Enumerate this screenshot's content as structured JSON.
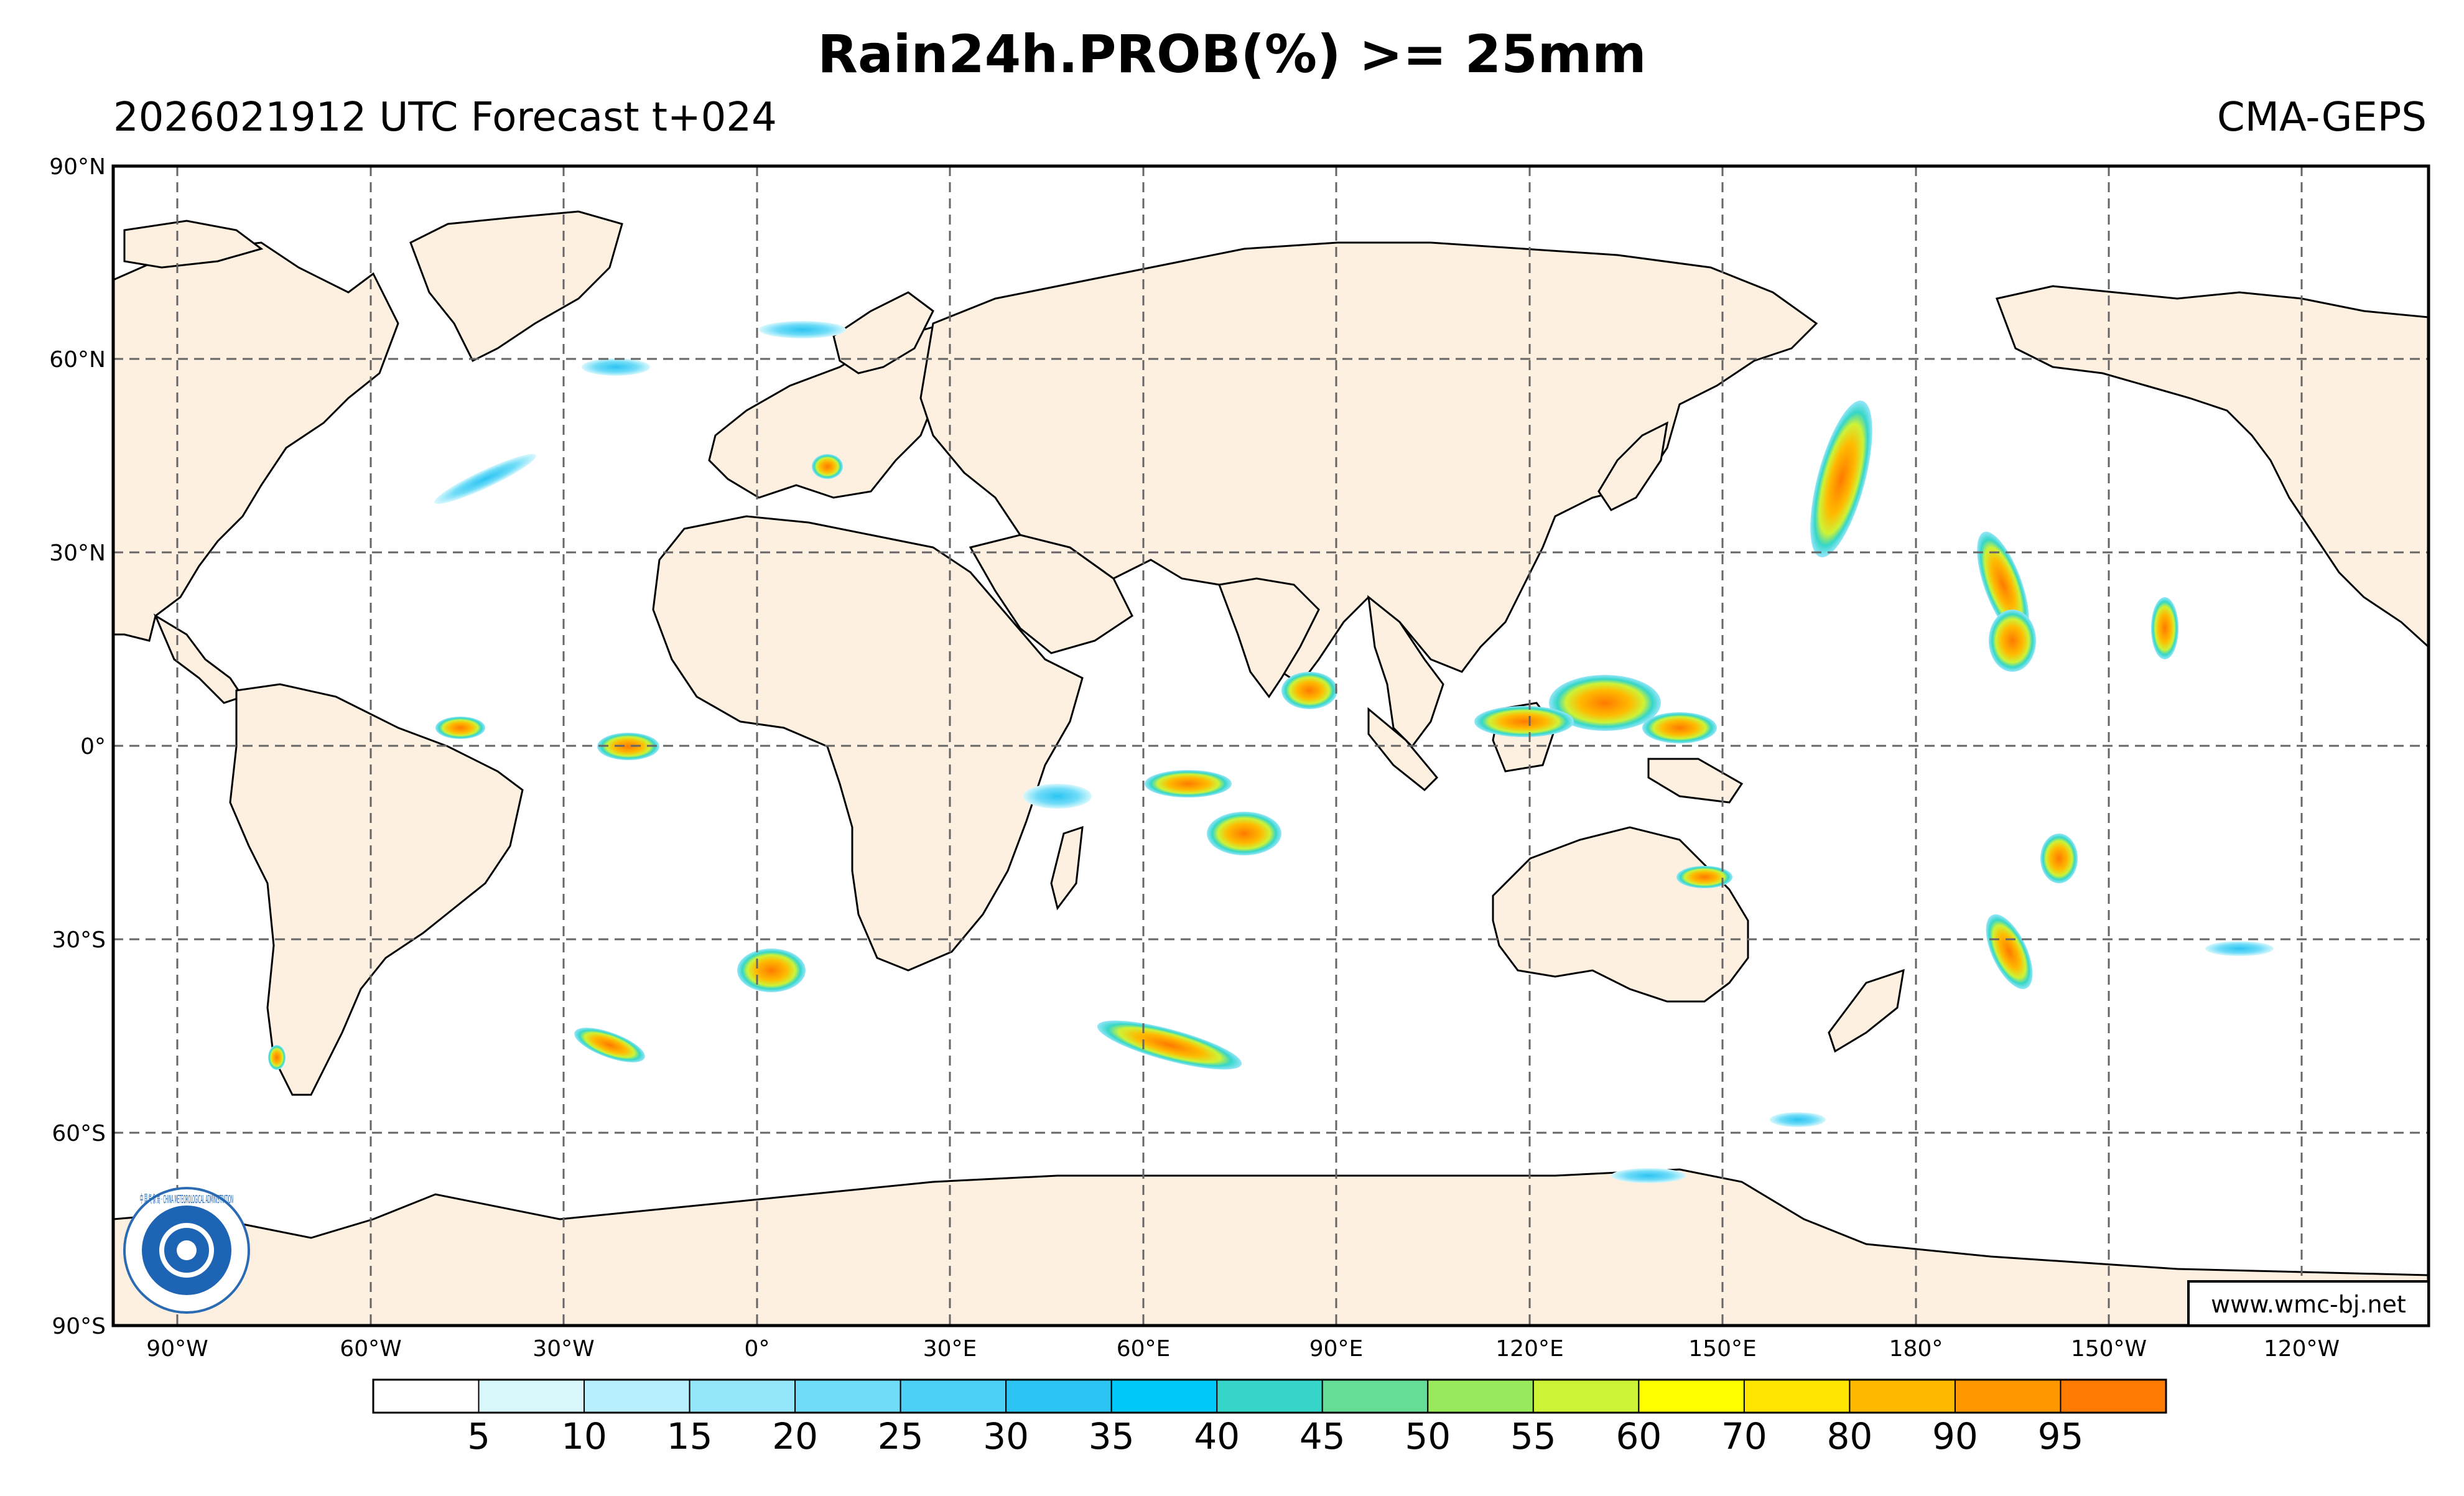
{
  "header": {
    "title": "Rain24h.PROB(%) >= 25mm",
    "subtitle_left": "2026021912 UTC Forecast t+024",
    "subtitle_right": "CMA-GEPS"
  },
  "axes": {
    "lat_labels": [
      "90°N",
      "60°N",
      "30°N",
      "0°",
      "30°S",
      "60°S",
      "90°S"
    ],
    "lon_labels": [
      "90°W",
      "60°W",
      "30°W",
      "0°",
      "30°E",
      "60°E",
      "90°E",
      "120°E",
      "150°E",
      "180°",
      "150°W",
      "120°W"
    ]
  },
  "colorbar": {
    "colors": [
      "#ffffff",
      "#d8f8fc",
      "#b8effc",
      "#96e6fa",
      "#6fdcf8",
      "#4dd0f6",
      "#2cc4f2",
      "#00c8f8",
      "#35d6c9",
      "#66dd96",
      "#98ea5c",
      "#cdf337",
      "#ffff00",
      "#ffe500",
      "#ffba00",
      "#ff9800",
      "#ff7a00"
    ],
    "labels": [
      "5",
      "10",
      "15",
      "20",
      "25",
      "30",
      "35",
      "40",
      "45",
      "50",
      "55",
      "60",
      "70",
      "80",
      "90",
      "95"
    ]
  },
  "credit": "www.wmc-bj.net",
  "colors": {
    "land": "#fdf0e0",
    "coast": "#000000",
    "grid": "#666666"
  },
  "logo_text": "中 国 气 象 局 · CHINA METEOROLOGICAL ADMINISTRATION"
}
